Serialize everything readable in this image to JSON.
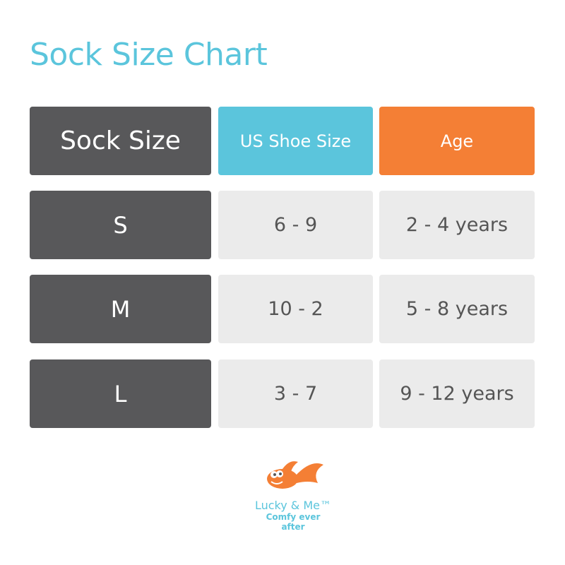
{
  "title": "Sock Size Chart",
  "headers": [
    "Sock Size",
    "US Shoe Size",
    "Age"
  ],
  "rows": [
    {
      "size": "S",
      "shoe": "6 - 9",
      "age": "2 - 4 years"
    },
    {
      "size": "M",
      "shoe": "10 - 2",
      "age": "5 - 8 years"
    },
    {
      "size": "L",
      "shoe": "3 - 7",
      "age": "9 - 12 years"
    }
  ],
  "logo": {
    "brand": "Lucky & Me™",
    "tagline": "Comfy ever after",
    "icon": "goldfish-icon"
  },
  "colors": {
    "dark": "#58585a",
    "blue": "#5bc5dc",
    "orange": "#f47f35",
    "light": "#ebebeb"
  }
}
